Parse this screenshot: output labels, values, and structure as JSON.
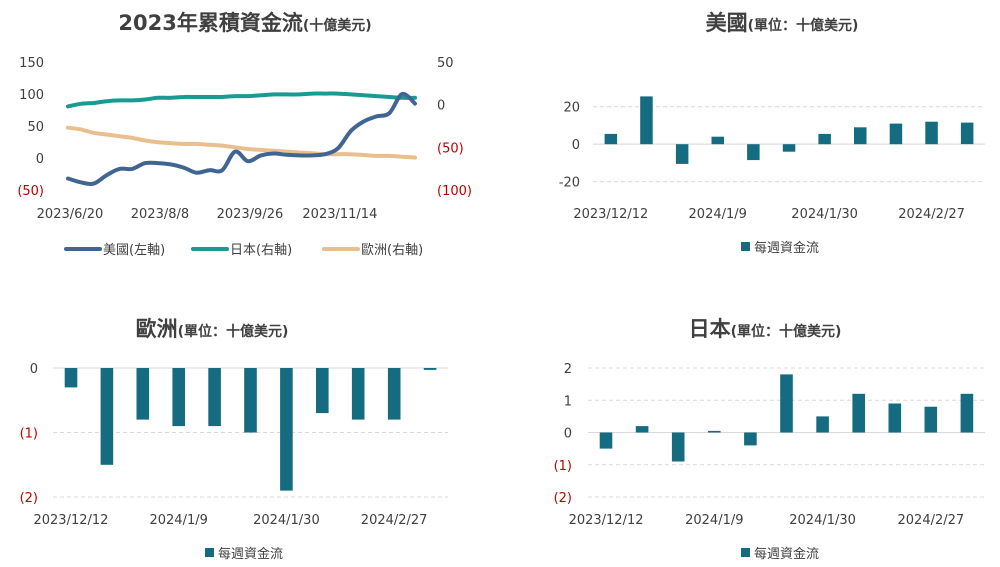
{
  "colors": {
    "us": "#416593",
    "japan": "#199a92",
    "europe": "#e9bf8d",
    "bar": "#156b80",
    "negative_label": "#c00000"
  },
  "chart_data": [
    {
      "id": "cumulative",
      "type": "line",
      "title": "2023年累積資金流",
      "title_unit": "(十億美元)",
      "x_tick_labels": [
        "2023/6/20",
        "2023/8/8",
        "2023/9/26",
        "2023/11/14"
      ],
      "x_tick_index": [
        0,
        7,
        14,
        21
      ],
      "left_axis": {
        "ylim": [
          -50,
          150
        ],
        "ticks": [
          150,
          100,
          50,
          0,
          -50
        ],
        "tick_labels": [
          "150",
          "100",
          "50",
          "0",
          "(50)"
        ]
      },
      "right_axis": {
        "ylim": [
          -100,
          50
        ],
        "ticks": [
          50,
          0,
          -50,
          -100
        ],
        "tick_labels": [
          "50",
          "0",
          "(50)",
          "(100)"
        ]
      },
      "series": [
        {
          "name": "美國(左軸)",
          "axis": "left",
          "color_key": "us",
          "values": [
            -32,
            -38,
            -40,
            -27,
            -17,
            -17,
            -8,
            -8,
            -10,
            -15,
            -23,
            -19,
            -19,
            10,
            -5,
            4,
            7,
            5,
            4,
            4,
            6,
            15,
            42,
            57,
            65,
            70,
            100,
            85
          ]
        },
        {
          "name": "日本(右軸)",
          "axis": "right",
          "color_key": "japan",
          "values": [
            -2,
            1,
            2,
            4,
            5,
            5,
            6,
            8,
            8,
            9,
            9,
            9,
            9,
            10,
            10,
            11,
            12,
            12,
            12,
            13,
            13,
            13,
            12,
            11,
            10,
            9,
            8,
            8
          ]
        },
        {
          "name": "歐洲(右軸)",
          "axis": "right",
          "color_key": "europe",
          "values": [
            -27,
            -29,
            -33,
            -35,
            -37,
            -39,
            -42,
            -44,
            -45,
            -46,
            -46,
            -47,
            -48,
            -50,
            -52,
            -53,
            -54,
            -55,
            -56,
            -57,
            -58,
            -58,
            -58,
            -59,
            -60,
            -60,
            -61,
            -62
          ]
        }
      ]
    },
    {
      "id": "us",
      "type": "bar",
      "title": "美國",
      "title_unit": "(單位：十億美元)",
      "ylim": [
        -25,
        30
      ],
      "ticks": [
        20,
        0,
        -20
      ],
      "tick_labels": [
        "20",
        "0",
        "-20"
      ],
      "x_tick_labels": [
        "2023/12/12",
        "2024/1/9",
        "2024/1/30",
        "2024/2/27"
      ],
      "x_tick_index": [
        0,
        3,
        6,
        9
      ],
      "values": [
        5.5,
        25.5,
        -10.5,
        4,
        -8.5,
        -4,
        5.5,
        9,
        11,
        12,
        11.5
      ],
      "legend": "每週資金流"
    },
    {
      "id": "europe",
      "type": "bar",
      "title": "歐洲",
      "title_unit": "(單位：十億美元)",
      "ylim": [
        -2,
        0
      ],
      "ticks": [
        0,
        -1,
        -2
      ],
      "tick_labels": [
        "0",
        "(1)",
        "(2)"
      ],
      "x_tick_labels": [
        "2023/12/12",
        "2024/1/9",
        "2024/1/30",
        "2024/2/27"
      ],
      "x_tick_index": [
        0,
        3,
        6,
        9
      ],
      "values": [
        -0.3,
        -1.5,
        -0.8,
        -0.9,
        -0.9,
        -1.0,
        -1.9,
        -0.7,
        -0.8,
        -0.8,
        -0.03
      ],
      "legend": "每週資金流"
    },
    {
      "id": "japan",
      "type": "bar",
      "title": "日本",
      "title_unit": "(單位：十億美元)",
      "ylim": [
        -2,
        2
      ],
      "ticks": [
        2,
        1,
        0,
        -1,
        -2
      ],
      "tick_labels": [
        "2",
        "1",
        "0",
        "(1)",
        "(2)"
      ],
      "x_tick_labels": [
        "2023/12/12",
        "2024/1/9",
        "2024/1/30",
        "2024/2/27"
      ],
      "x_tick_index": [
        0,
        3,
        6,
        9
      ],
      "values": [
        -0.5,
        0.2,
        -0.9,
        0.05,
        -0.4,
        1.8,
        0.5,
        1.2,
        0.9,
        0.8,
        1.2
      ],
      "legend": "每週資金流"
    }
  ]
}
